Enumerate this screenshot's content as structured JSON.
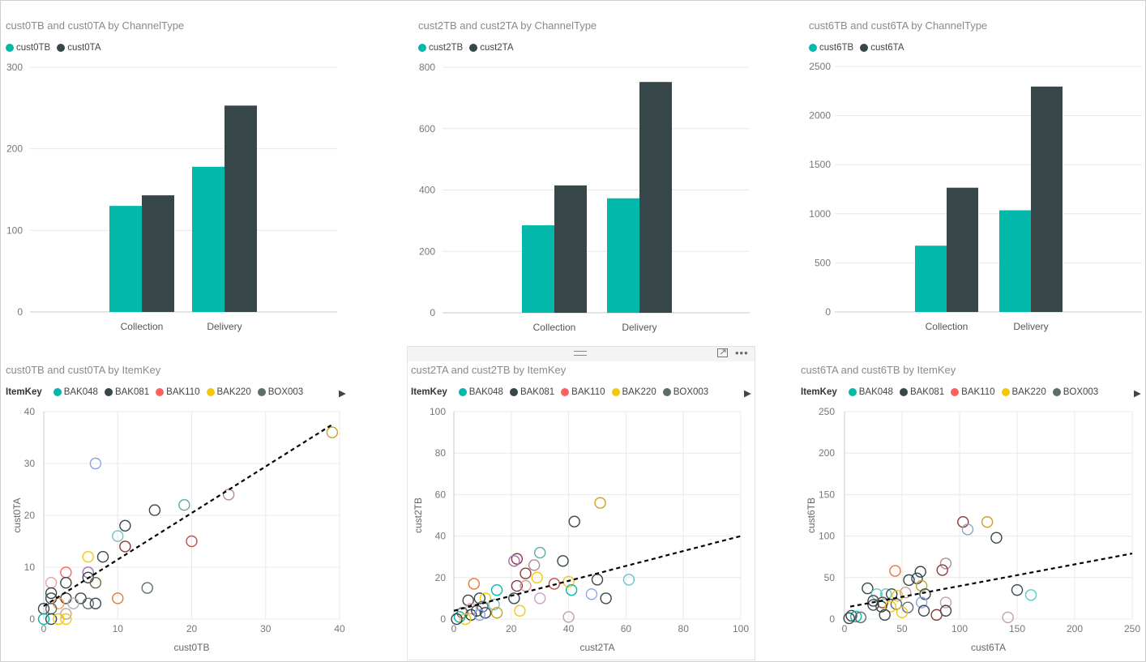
{
  "colors": {
    "teal": "#01B8AA",
    "dark": "#374649",
    "red": "#FD625E",
    "yellow": "#F2C80F",
    "gray": "#5F6B6D",
    "trend": "#000000",
    "gridline": "#e8e8e8",
    "axis_text": "#777777"
  },
  "toolbar": {
    "focus_icon": "focus-mode-icon",
    "more_icon": "more-options-icon"
  },
  "chart_data": [
    {
      "id": "bar0",
      "type": "bar",
      "title": "cust0TB and cust0TA by ChannelType",
      "categories": [
        "Collection",
        "Delivery"
      ],
      "series": [
        {
          "name": "cust0TB",
          "color": "#01B8AA",
          "values": [
            130,
            178
          ]
        },
        {
          "name": "cust0TA",
          "color": "#374649",
          "values": [
            143,
            253
          ]
        }
      ],
      "ylim": [
        0,
        300
      ],
      "yticks": [
        "0",
        "100",
        "200",
        "300"
      ],
      "grid": true,
      "legend_position": "top-left"
    },
    {
      "id": "bar2",
      "type": "bar",
      "title": "cust2TB and cust2TA by ChannelType",
      "categories": [
        "Collection",
        "Delivery"
      ],
      "series": [
        {
          "name": "cust2TB",
          "color": "#01B8AA",
          "values": [
            285,
            373
          ]
        },
        {
          "name": "cust2TA",
          "color": "#374649",
          "values": [
            415,
            752
          ]
        }
      ],
      "ylim": [
        0,
        800
      ],
      "yticks": [
        "0",
        "200",
        "400",
        "600",
        "800"
      ],
      "grid": true,
      "legend_position": "top-left"
    },
    {
      "id": "bar6",
      "type": "bar",
      "title": "cust6TB and cust6TA by ChannelType",
      "categories": [
        "Collection",
        "Delivery"
      ],
      "series": [
        {
          "name": "cust6TB",
          "color": "#01B8AA",
          "values": [
            675,
            1035
          ]
        },
        {
          "name": "cust6TA",
          "color": "#374649",
          "values": [
            1265,
            2295
          ]
        }
      ],
      "ylim": [
        0,
        2500
      ],
      "yticks": [
        "0",
        "500",
        "1000",
        "1500",
        "2000",
        "2500"
      ],
      "grid": true,
      "legend_position": "top-left"
    },
    {
      "id": "sc0",
      "type": "scatter",
      "title": "cust0TB and cust0TA by ItemKey",
      "legend_title": "ItemKey",
      "legend": [
        {
          "name": "BAK048",
          "color": "#01B8AA"
        },
        {
          "name": "BAK081",
          "color": "#374649"
        },
        {
          "name": "BAK110",
          "color": "#FD625E"
        },
        {
          "name": "BAK220",
          "color": "#F2C80F"
        },
        {
          "name": "BOX003",
          "color": "#5F6B6D"
        }
      ],
      "xlabel": "cust0TB",
      "ylabel": "cust0TA",
      "xlim": [
        0,
        40
      ],
      "ylim": [
        0,
        40
      ],
      "xticks": [
        "0",
        "10",
        "20",
        "30",
        "40"
      ],
      "yticks": [
        "0",
        "10",
        "20",
        "30",
        "40"
      ],
      "trend": [
        [
          0,
          2.5
        ],
        [
          39,
          37.5
        ]
      ],
      "points": [
        {
          "x": 7,
          "y": 30,
          "c": "#8AA4F0"
        },
        {
          "x": 39,
          "y": 36,
          "c": "#C8A028"
        },
        {
          "x": 25,
          "y": 24,
          "c": "#B08A96"
        },
        {
          "x": 19,
          "y": 22,
          "c": "#5FA8A8"
        },
        {
          "x": 15,
          "y": 21,
          "c": "#374649"
        },
        {
          "x": 11,
          "y": 18,
          "c": "#374649"
        },
        {
          "x": 10,
          "y": 16,
          "c": "#5FC8C8"
        },
        {
          "x": 20,
          "y": 15,
          "c": "#C0504D"
        },
        {
          "x": 11,
          "y": 14,
          "c": "#8B3A3A"
        },
        {
          "x": 8,
          "y": 12,
          "c": "#374649"
        },
        {
          "x": 6,
          "y": 12,
          "c": "#F2C80F"
        },
        {
          "x": 3,
          "y": 9,
          "c": "#FD625E"
        },
        {
          "x": 6,
          "y": 9,
          "c": "#A070B0"
        },
        {
          "x": 6,
          "y": 8,
          "c": "#374649"
        },
        {
          "x": 1,
          "y": 7,
          "c": "#E8A0A0"
        },
        {
          "x": 3,
          "y": 7,
          "c": "#374649"
        },
        {
          "x": 7,
          "y": 7,
          "c": "#5F6B3D"
        },
        {
          "x": 14,
          "y": 6,
          "c": "#5F6B6D"
        },
        {
          "x": 1,
          "y": 5,
          "c": "#374649"
        },
        {
          "x": 1,
          "y": 4,
          "c": "#374649"
        },
        {
          "x": 3,
          "y": 4,
          "c": "#374649"
        },
        {
          "x": 5,
          "y": 4,
          "c": "#374649"
        },
        {
          "x": 10,
          "y": 4,
          "c": "#E07840"
        },
        {
          "x": 6,
          "y": 3,
          "c": "#5F6B6D"
        },
        {
          "x": 7,
          "y": 3,
          "c": "#374649"
        },
        {
          "x": 4,
          "y": 3,
          "c": "#B0B0B0"
        },
        {
          "x": 2,
          "y": 3,
          "c": "#F0A060"
        },
        {
          "x": 0,
          "y": 2,
          "c": "#374649"
        },
        {
          "x": 1,
          "y": 2,
          "c": "#5F6B6D"
        },
        {
          "x": 3,
          "y": 1,
          "c": "#C8A0A0"
        },
        {
          "x": 1,
          "y": 0,
          "c": "#374649"
        },
        {
          "x": 2,
          "y": 0,
          "c": "#F2C80F"
        },
        {
          "x": 3,
          "y": 0,
          "c": "#F2C80F"
        },
        {
          "x": 0,
          "y": 0,
          "c": "#01B8AA"
        }
      ]
    },
    {
      "id": "sc2",
      "type": "scatter",
      "title": "cust2TA and cust2TB by ItemKey",
      "legend_title": "ItemKey",
      "legend": [
        {
          "name": "BAK048",
          "color": "#01B8AA"
        },
        {
          "name": "BAK081",
          "color": "#374649"
        },
        {
          "name": "BAK110",
          "color": "#FD625E"
        },
        {
          "name": "BAK220",
          "color": "#F2C80F"
        },
        {
          "name": "BOX003",
          "color": "#5F6B6D"
        }
      ],
      "xlabel": "cust2TA",
      "ylabel": "cust2TB",
      "xlim": [
        0,
        100
      ],
      "ylim": [
        0,
        100
      ],
      "xticks": [
        "0",
        "20",
        "40",
        "60",
        "80",
        "100"
      ],
      "yticks": [
        "0",
        "20",
        "40",
        "60",
        "80",
        "100"
      ],
      "trend": [
        [
          0,
          4
        ],
        [
          100,
          40
        ]
      ],
      "points": [
        {
          "x": 51,
          "y": 56,
          "c": "#C8A028"
        },
        {
          "x": 42,
          "y": 47,
          "c": "#374649"
        },
        {
          "x": 30,
          "y": 32,
          "c": "#5FA8A8"
        },
        {
          "x": 22,
          "y": 29,
          "c": "#8B3A3A"
        },
        {
          "x": 21,
          "y": 28,
          "c": "#A070B0"
        },
        {
          "x": 38,
          "y": 28,
          "c": "#374649"
        },
        {
          "x": 28,
          "y": 26,
          "c": "#B08A96"
        },
        {
          "x": 25,
          "y": 22,
          "c": "#8B3A3A"
        },
        {
          "x": 29,
          "y": 20,
          "c": "#F2C80F"
        },
        {
          "x": 50,
          "y": 19,
          "c": "#374649"
        },
        {
          "x": 61,
          "y": 19,
          "c": "#5FC8C8"
        },
        {
          "x": 40,
          "y": 18,
          "c": "#F2C80F"
        },
        {
          "x": 7,
          "y": 17,
          "c": "#E07840"
        },
        {
          "x": 35,
          "y": 17,
          "c": "#C0504D"
        },
        {
          "x": 22,
          "y": 16,
          "c": "#8B3A3A"
        },
        {
          "x": 25,
          "y": 16,
          "c": "#C8A0A0"
        },
        {
          "x": 41,
          "y": 14,
          "c": "#01B8AA"
        },
        {
          "x": 15,
          "y": 14,
          "c": "#01B8AA"
        },
        {
          "x": 48,
          "y": 12,
          "c": "#8AA4F0"
        },
        {
          "x": 21,
          "y": 10,
          "c": "#374649"
        },
        {
          "x": 30,
          "y": 10,
          "c": "#C8A0C8"
        },
        {
          "x": 53,
          "y": 10,
          "c": "#374649"
        },
        {
          "x": 5,
          "y": 9,
          "c": "#374649"
        },
        {
          "x": 9,
          "y": 10,
          "c": "#374649"
        },
        {
          "x": 11,
          "y": 10,
          "c": "#F2C80F"
        },
        {
          "x": 14,
          "y": 7,
          "c": "#5FC8C8"
        },
        {
          "x": 10,
          "y": 6,
          "c": "#5F6B6D"
        },
        {
          "x": 6,
          "y": 5,
          "c": "#E8A0A0"
        },
        {
          "x": 23,
          "y": 4,
          "c": "#F2C80F"
        },
        {
          "x": 8,
          "y": 4,
          "c": "#374649"
        },
        {
          "x": 3,
          "y": 3,
          "c": "#5F6B6D"
        },
        {
          "x": 15,
          "y": 3,
          "c": "#C8A028"
        },
        {
          "x": 11,
          "y": 3,
          "c": "#374649"
        },
        {
          "x": 6,
          "y": 2,
          "c": "#374649"
        },
        {
          "x": 2,
          "y": 1,
          "c": "#01B8AA"
        },
        {
          "x": 4,
          "y": 0,
          "c": "#F2C80F"
        },
        {
          "x": 40,
          "y": 1,
          "c": "#C8A0A0"
        },
        {
          "x": 9,
          "y": 2,
          "c": "#8AA4F0"
        },
        {
          "x": 1,
          "y": 0,
          "c": "#374649"
        }
      ]
    },
    {
      "id": "sc6",
      "type": "scatter",
      "title": "cust6TA and cust6TB by ItemKey",
      "legend_title": "ItemKey",
      "legend": [
        {
          "name": "BAK048",
          "color": "#01B8AA"
        },
        {
          "name": "BAK081",
          "color": "#374649"
        },
        {
          "name": "BAK110",
          "color": "#FD625E"
        },
        {
          "name": "BAK220",
          "color": "#F2C80F"
        },
        {
          "name": "BOX003",
          "color": "#5F6B6D"
        }
      ],
      "xlabel": "cust6TA",
      "ylabel": "cust6TB",
      "xlim": [
        0,
        250
      ],
      "ylim": [
        0,
        250
      ],
      "xticks": [
        "0",
        "50",
        "100",
        "150",
        "200",
        "250"
      ],
      "yticks": [
        "0",
        "50",
        "100",
        "150",
        "200",
        "250"
      ],
      "trend": [
        [
          5,
          15
        ],
        [
          250,
          79
        ]
      ],
      "points": [
        {
          "x": 103,
          "y": 117,
          "c": "#8B3A3A"
        },
        {
          "x": 124,
          "y": 117,
          "c": "#C8A028"
        },
        {
          "x": 107,
          "y": 108,
          "c": "#8AA4C8"
        },
        {
          "x": 132,
          "y": 98,
          "c": "#374649"
        },
        {
          "x": 88,
          "y": 67,
          "c": "#B08A96"
        },
        {
          "x": 44,
          "y": 58,
          "c": "#E07840"
        },
        {
          "x": 85,
          "y": 59,
          "c": "#8B3A3A"
        },
        {
          "x": 66,
          "y": 57,
          "c": "#374649"
        },
        {
          "x": 56,
          "y": 47,
          "c": "#374649"
        },
        {
          "x": 63,
          "y": 49,
          "c": "#374649"
        },
        {
          "x": 67,
          "y": 40,
          "c": "#C8A028"
        },
        {
          "x": 20,
          "y": 37,
          "c": "#374649"
        },
        {
          "x": 150,
          "y": 35,
          "c": "#374649"
        },
        {
          "x": 28,
          "y": 30,
          "c": "#5FC8C8"
        },
        {
          "x": 36,
          "y": 30,
          "c": "#5FC8C8"
        },
        {
          "x": 41,
          "y": 30,
          "c": "#374649"
        },
        {
          "x": 46,
          "y": 28,
          "c": "#F2C80F"
        },
        {
          "x": 53,
          "y": 32,
          "c": "#C8A0A0"
        },
        {
          "x": 70,
          "y": 30,
          "c": "#374649"
        },
        {
          "x": 162,
          "y": 29,
          "c": "#5FC8C8"
        },
        {
          "x": 25,
          "y": 22,
          "c": "#374649"
        },
        {
          "x": 33,
          "y": 20,
          "c": "#8B3A3A"
        },
        {
          "x": 45,
          "y": 18,
          "c": "#5F6B6D"
        },
        {
          "x": 88,
          "y": 20,
          "c": "#C8A0A0"
        },
        {
          "x": 25,
          "y": 17,
          "c": "#374649"
        },
        {
          "x": 32,
          "y": 15,
          "c": "#374649"
        },
        {
          "x": 40,
          "y": 15,
          "c": "#F2C80F"
        },
        {
          "x": 55,
          "y": 14,
          "c": "#5F6B6D"
        },
        {
          "x": 67,
          "y": 20,
          "c": "#8AA4F0"
        },
        {
          "x": 69,
          "y": 10,
          "c": "#374649"
        },
        {
          "x": 88,
          "y": 10,
          "c": "#374649"
        },
        {
          "x": 50,
          "y": 8,
          "c": "#F2C80F"
        },
        {
          "x": 35,
          "y": 5,
          "c": "#374649"
        },
        {
          "x": 80,
          "y": 5,
          "c": "#8B3A3A"
        },
        {
          "x": 142,
          "y": 2,
          "c": "#C8A0A0"
        },
        {
          "x": 6,
          "y": 4,
          "c": "#374649"
        },
        {
          "x": 10,
          "y": 3,
          "c": "#01B8AA"
        },
        {
          "x": 14,
          "y": 2,
          "c": "#5F6B6D"
        },
        {
          "x": 4,
          "y": 1,
          "c": "#374649"
        }
      ]
    }
  ]
}
